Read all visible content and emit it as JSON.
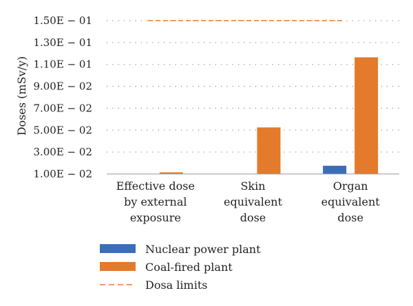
{
  "chart_data": {
    "type": "bar",
    "title": "",
    "ylabel": "Doses (mSv/y)",
    "xlabel": "",
    "ylim": [
      0.01,
      0.15
    ],
    "y_ticks": [
      0.01,
      0.03,
      0.05,
      0.07,
      0.09,
      0.11,
      0.13,
      0.15
    ],
    "y_tick_labels": [
      "1.00E − 02",
      "3.00E − 02",
      "5.00E − 02",
      "7.00E − 02",
      "9.00E − 02",
      "1.10E − 01",
      "1.30E − 01",
      "1.50E − 01"
    ],
    "grid": true,
    "legend_position": "bottom",
    "categories": [
      [
        "Effective dose",
        "by external",
        "exposure"
      ],
      [
        "Skin",
        "equivalent",
        "dose"
      ],
      [
        "Organ",
        "equivalent",
        "dose"
      ]
    ],
    "series": [
      {
        "name": "Nuclear power plant",
        "color": "#3a6fb7",
        "values": [
          0.0098,
          0.0099,
          0.0175
        ]
      },
      {
        "name": "Coal-fired plant",
        "color": "#e37a2c",
        "values": [
          0.0115,
          0.0525,
          0.1165
        ]
      }
    ],
    "limit_line": {
      "name": "Dosa limits",
      "color": "#e37a2c",
      "value": 0.15
    }
  }
}
